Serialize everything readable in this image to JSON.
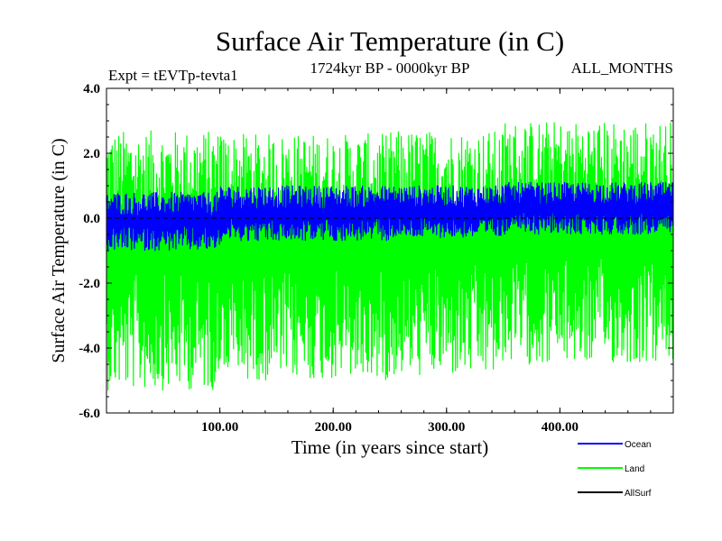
{
  "chart_data": {
    "type": "line",
    "title": "Surface Air Temperature (in C)",
    "subtitle": "1724kyr BP - 0000kyr BP",
    "expt_label": "Expt = tEVTp-tevta1",
    "months_label": "ALL_MONTHS",
    "xlabel": "Time (in years since start)",
    "ylabel": "Surface Air Temperature (in C)",
    "xlim": [
      0,
      500
    ],
    "ylim": [
      -6.0,
      4.0
    ],
    "xticks": [
      {
        "value": 100,
        "label": "100.00"
      },
      {
        "value": 200,
        "label": "200.00"
      },
      {
        "value": 300,
        "label": "300.00"
      },
      {
        "value": 400,
        "label": "400.00"
      }
    ],
    "yticks": [
      {
        "value": 4.0,
        "label": "4.0"
      },
      {
        "value": 2.0,
        "label": "2.0"
      },
      {
        "value": 0.0,
        "label": "0.0"
      },
      {
        "value": -2.0,
        "label": "-2.0"
      },
      {
        "value": -4.0,
        "label": "-4.0"
      },
      {
        "value": -6.0,
        "label": "-6.0"
      }
    ],
    "zero_line": 0.0,
    "series": [
      {
        "name": "Land",
        "color": "#00ff00",
        "segments": [
          {
            "x": [
              0,
              100
            ],
            "mean": -1.0,
            "upper": 2.7,
            "lower": -5.3
          },
          {
            "x": [
              100,
              250
            ],
            "mean": -0.9,
            "upper": 2.6,
            "lower": -5.0
          },
          {
            "x": [
              250,
              350
            ],
            "mean": -0.8,
            "upper": 2.7,
            "lower": -4.9
          },
          {
            "x": [
              350,
              500
            ],
            "mean": -0.6,
            "upper": 3.0,
            "lower": -4.5
          }
        ]
      },
      {
        "name": "Ocean",
        "color": "#0000ff",
        "segments": [
          {
            "x": [
              0,
              100
            ],
            "mean": -0.1,
            "upper": 0.8,
            "lower": -1.0
          },
          {
            "x": [
              100,
              250
            ],
            "mean": 0.15,
            "upper": 1.0,
            "lower": -0.7
          },
          {
            "x": [
              250,
              350
            ],
            "mean": 0.2,
            "upper": 1.0,
            "lower": -0.6
          },
          {
            "x": [
              350,
              500
            ],
            "mean": 0.3,
            "upper": 1.1,
            "lower": -0.5
          }
        ]
      },
      {
        "name": "AllSurf",
        "color": "#000000",
        "segments": []
      }
    ],
    "legend": {
      "placement": "bottom-right",
      "entries": [
        {
          "name": "Ocean",
          "color": "#0000ff"
        },
        {
          "name": "Land",
          "color": "#00ff00"
        },
        {
          "name": "AllSurf",
          "color": "#000000"
        }
      ]
    }
  }
}
